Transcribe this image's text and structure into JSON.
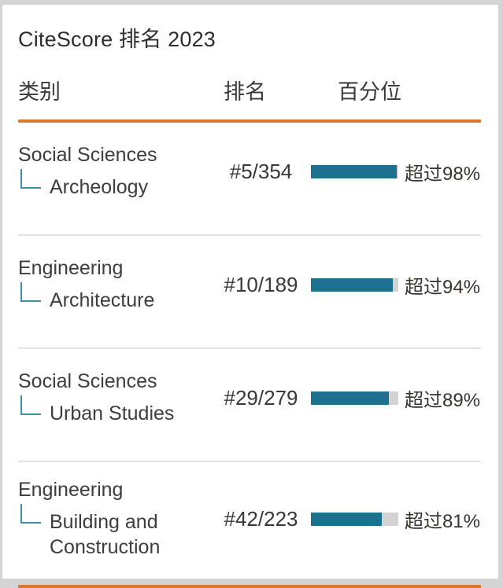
{
  "colors": {
    "accent_orange": "#d9782d",
    "bar_teal": "#1b718f",
    "bar_track": "#d3d3d3",
    "connector_teal": "#3e90aa",
    "divider_gray": "#e3e3e3",
    "page_edge": "#d4d4d4"
  },
  "widget": {
    "title": "CiteScore 排名 2023",
    "columns": {
      "category": "类别",
      "rank": "排名",
      "percentile": "百分位"
    },
    "rows": [
      {
        "category": "Social Sciences",
        "subcategory": "Archeology",
        "rank": "#5/354",
        "percentile": 98,
        "percentile_label": "超过98%"
      },
      {
        "category": "Engineering",
        "subcategory": "Architecture",
        "rank": "#10/189",
        "percentile": 94,
        "percentile_label": "超过94%"
      },
      {
        "category": "Social Sciences",
        "subcategory": "Urban Studies",
        "rank": "#29/279",
        "percentile": 89,
        "percentile_label": "超过89%"
      },
      {
        "category": "Engineering",
        "subcategory": "Building and Construction",
        "rank": "#42/223",
        "percentile": 81,
        "percentile_label": "超过81%"
      }
    ]
  },
  "chart_data": {
    "type": "table",
    "title": "CiteScore 排名 2023",
    "columns": [
      "类别",
      "排名",
      "百分位"
    ],
    "rows": [
      [
        "Social Sciences / Archeology",
        "#5/354",
        "超过98%"
      ],
      [
        "Engineering / Architecture",
        "#10/189",
        "超过94%"
      ],
      [
        "Social Sciences / Urban Studies",
        "#29/279",
        "超过89%"
      ],
      [
        "Engineering / Building and Construction",
        "#42/223",
        "超过81%"
      ]
    ],
    "bar_values": [
      98,
      94,
      89,
      81
    ],
    "bar_range": [
      0,
      100
    ],
    "bar_color": "#1b718f"
  }
}
